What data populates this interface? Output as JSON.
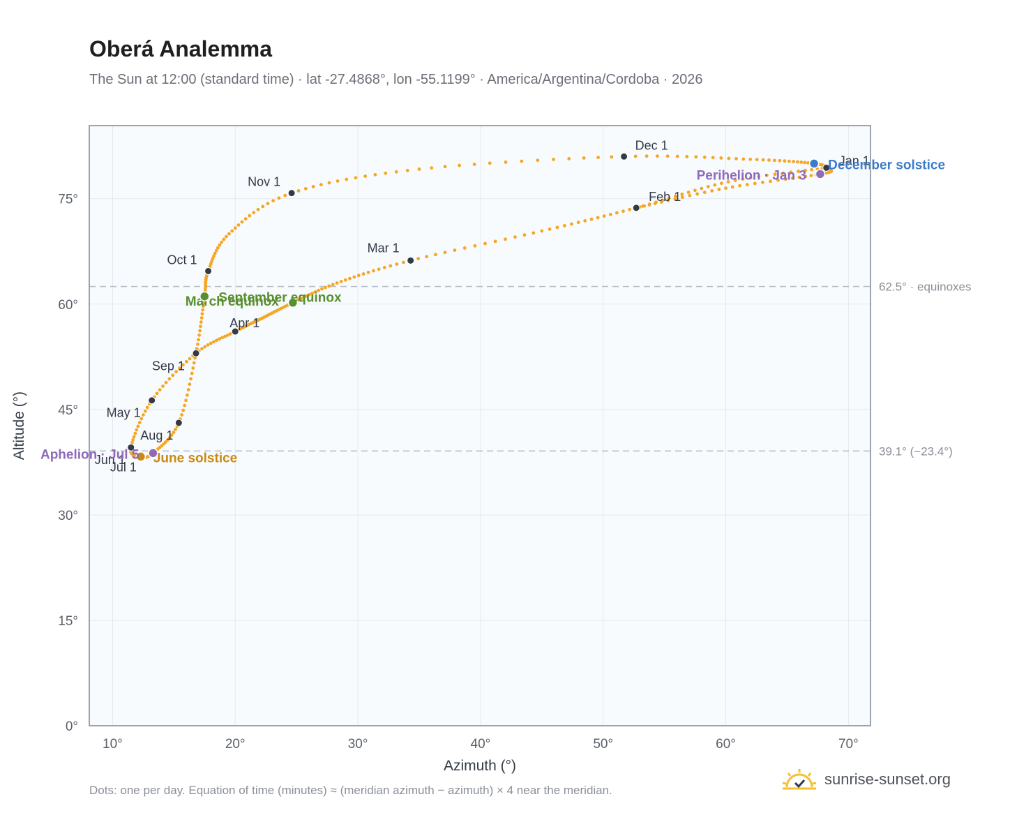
{
  "title": "Oberá Analemma",
  "subtitle": "The Sun at 12:00 (standard time) · lat -27.4868°, lon -55.1199° · America/Argentina/Cordoba · 2026",
  "footer_note": "Dots: one per day. Equation of time (minutes) ≈ (meridian azimuth − azimuth) × 4 near the meridian.",
  "brand": "sunrise-sunset.org",
  "colors": {
    "path": "#f5a623",
    "month_marker": "#333a47",
    "equinox": "#5a8f2e",
    "june_solstice": "#c98a12",
    "december_solstice": "#3d7cc9",
    "apsis": "#8e6bb8",
    "reference_line": "#b7bec8",
    "plot_bg": "#f8fbfe",
    "grid": "#e3e8ee",
    "frame": "#9aa4b1"
  },
  "chart_data": {
    "type": "scatter",
    "xlabel": "Azimuth (°)",
    "ylabel": "Altitude (°)",
    "xlim": [
      8.1,
      71.8
    ],
    "ylim": [
      0,
      85.4
    ],
    "x_ticks": [
      "10°",
      "20°",
      "30°",
      "40°",
      "50°",
      "60°",
      "70°"
    ],
    "y_ticks": [
      "0°",
      "15°",
      "30°",
      "45°",
      "60°",
      "75°"
    ],
    "grid": true,
    "series": [
      {
        "type": "daily_path",
        "points": [
          [
            68.2,
            79.4
          ],
          [
            60.2,
            77.4
          ],
          [
            52.7,
            73.7
          ],
          [
            45.0,
            70.4
          ],
          [
            34.3,
            66.2
          ],
          [
            28.3,
            63.0
          ],
          [
            24.7,
            60.2
          ],
          [
            22.2,
            58.0
          ],
          [
            20.0,
            56.1
          ],
          [
            16.8,
            53.0
          ],
          [
            13.2,
            46.3
          ],
          [
            11.5,
            39.6
          ],
          [
            12.3,
            38.3
          ],
          [
            13.3,
            38.8
          ],
          [
            15.4,
            43.1
          ],
          [
            16.8,
            53.0
          ],
          [
            17.5,
            61.1
          ],
          [
            17.8,
            64.7
          ],
          [
            19.5,
            70.0
          ],
          [
            24.6,
            75.8
          ],
          [
            35.0,
            79.2
          ],
          [
            51.7,
            81.0
          ],
          [
            62.0,
            80.6
          ],
          [
            67.2,
            80.0
          ],
          [
            68.4,
            79.2
          ],
          [
            67.7,
            78.5
          ],
          [
            60.0,
            76.5
          ],
          [
            52.7,
            73.7
          ]
        ]
      }
    ],
    "month_markers": [
      {
        "label": "Jan 1",
        "x": 68.2,
        "y": 79.4
      },
      {
        "label": "Feb 1",
        "x": 52.7,
        "y": 73.7
      },
      {
        "label": "Mar 1",
        "x": 34.3,
        "y": 66.2
      },
      {
        "label": "Apr 1",
        "x": 20.0,
        "y": 56.1
      },
      {
        "label": "May 1",
        "x": 13.2,
        "y": 46.3
      },
      {
        "label": "Jun 1",
        "x": 11.5,
        "y": 39.6
      },
      {
        "label": "Jul 1",
        "x": 12.3,
        "y": 38.3
      },
      {
        "label": "Aug 1",
        "x": 15.4,
        "y": 43.1
      },
      {
        "label": "Sep 1",
        "x": 16.8,
        "y": 53.0
      },
      {
        "label": "Oct 1",
        "x": 17.8,
        "y": 64.7
      },
      {
        "label": "Nov 1",
        "x": 24.6,
        "y": 75.8
      },
      {
        "label": "Dec 1",
        "x": 51.7,
        "y": 81.0
      }
    ],
    "events": [
      {
        "label": "March equinox",
        "x": 24.7,
        "y": 60.2,
        "kind": "equinox"
      },
      {
        "label": "September equinox",
        "x": 17.5,
        "y": 61.1,
        "kind": "equinox"
      },
      {
        "label": "June solstice",
        "x": 12.3,
        "y": 38.3,
        "kind": "june_solstice"
      },
      {
        "label": "December solstice",
        "x": 67.2,
        "y": 80.0,
        "kind": "december_solstice"
      },
      {
        "label": "Aphelion · Jul 5",
        "x": 13.3,
        "y": 38.8,
        "kind": "apsis"
      },
      {
        "label": "Perihelion · Jan 3",
        "x": 67.7,
        "y": 78.5,
        "kind": "apsis"
      }
    ],
    "reference_lines": [
      {
        "label": "62.5° · equinoxes",
        "y": 62.5
      },
      {
        "label": "39.1° (−23.4°)",
        "y": 39.1
      }
    ]
  }
}
